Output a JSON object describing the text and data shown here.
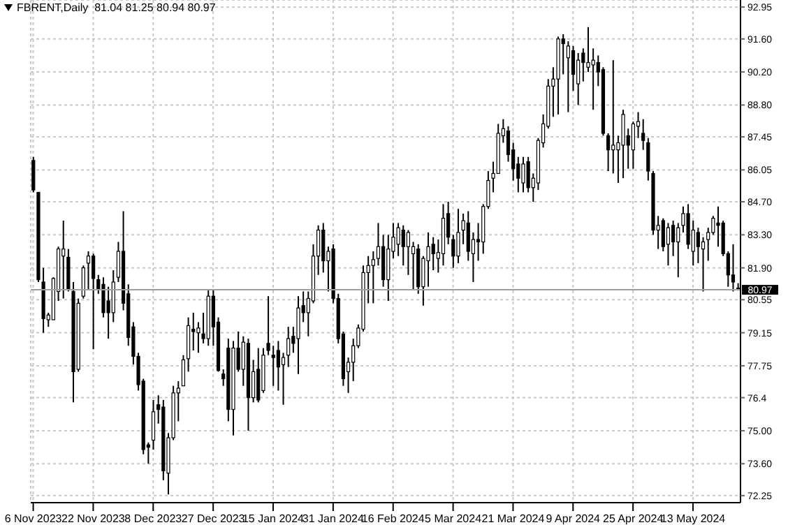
{
  "chart_data": {
    "type": "candlestick",
    "title": "FBRENT,Daily  81.04 81.25 80.94 80.97",
    "categories": [
      "6 Nov 2023",
      null,
      null,
      null,
      null,
      null,
      null,
      null,
      null,
      null,
      null,
      null,
      "22 Nov 2023",
      null,
      null,
      null,
      null,
      null,
      null,
      null,
      null,
      null,
      null,
      null,
      "8 Dec 2023",
      null,
      null,
      null,
      null,
      null,
      null,
      null,
      null,
      null,
      null,
      null,
      "27 Dec 2023",
      null,
      null,
      null,
      null,
      null,
      null,
      null,
      null,
      null,
      null,
      null,
      "15 Jan 2024",
      null,
      null,
      null,
      null,
      null,
      null,
      null,
      null,
      null,
      null,
      null,
      "31 Jan 2024",
      null,
      null,
      null,
      null,
      null,
      null,
      null,
      null,
      null,
      null,
      null,
      "16 Feb 2024",
      null,
      null,
      null,
      null,
      null,
      null,
      null,
      null,
      null,
      null,
      null,
      "5 Mar 2024",
      null,
      null,
      null,
      null,
      null,
      null,
      null,
      null,
      null,
      null,
      null,
      "21 Mar 2024",
      null,
      null,
      null,
      null,
      null,
      null,
      null,
      null,
      null,
      null,
      null,
      "9 Apr 2024",
      null,
      null,
      null,
      null,
      null,
      null,
      null,
      null,
      null,
      null,
      null,
      "25 Apr 2024",
      null,
      null,
      null,
      null,
      null,
      null,
      null,
      null,
      null,
      null,
      null,
      "13 May 2024",
      null,
      null,
      null,
      null,
      null,
      null,
      null,
      null,
      null
    ],
    "ohlc": [
      [
        86.45,
        86.6,
        85.1,
        85.2
      ],
      [
        85.1,
        85.1,
        81.3,
        81.4
      ],
      [
        81.3,
        81.9,
        79.15,
        79.75
      ],
      [
        79.7,
        80.0,
        79.4,
        79.9
      ],
      [
        79.7,
        81.5,
        79.7,
        81.45
      ],
      [
        80.9,
        82.8,
        80.5,
        82.7
      ],
      [
        82.4,
        83.9,
        80.6,
        82.7
      ],
      [
        82.35,
        82.7,
        80.9,
        81.0
      ],
      [
        80.9,
        81.3,
        76.2,
        77.5
      ],
      [
        77.6,
        80.6,
        77.5,
        80.4
      ],
      [
        80.7,
        82.0,
        80.6,
        81.9
      ],
      [
        82.1,
        82.6,
        81.0,
        82.4
      ],
      [
        82.4,
        82.5,
        78.45,
        81.45
      ],
      [
        81.4,
        81.6,
        80.8,
        81.0
      ],
      [
        81.2,
        81.5,
        79.8,
        80.0
      ],
      [
        80.5,
        81.1,
        78.9,
        80.0
      ],
      [
        80.0,
        81.8,
        79.6,
        81.3
      ],
      [
        81.5,
        83.0,
        81.3,
        82.6
      ],
      [
        82.6,
        84.3,
        80.1,
        80.4
      ],
      [
        80.8,
        81.2,
        78.6,
        78.95
      ],
      [
        79.4,
        79.6,
        77.8,
        78.15
      ],
      [
        78.15,
        78.3,
        76.7,
        76.95
      ],
      [
        77.1,
        77.2,
        74.0,
        74.2
      ],
      [
        74.4,
        74.5,
        73.6,
        74.3
      ],
      [
        74.6,
        76.3,
        74.2,
        75.8
      ],
      [
        76.1,
        76.5,
        75.3,
        75.9
      ],
      [
        76.0,
        76.3,
        72.9,
        73.3
      ],
      [
        73.2,
        74.9,
        72.3,
        74.7
      ],
      [
        74.7,
        76.9,
        74.6,
        76.6
      ],
      [
        76.6,
        77.1,
        75.4,
        76.8
      ],
      [
        76.9,
        78.2,
        76.9,
        78.0
      ],
      [
        78.05,
        79.8,
        77.5,
        79.45
      ],
      [
        79.3,
        80.0,
        78.4,
        79.2
      ],
      [
        79.15,
        79.6,
        78.3,
        79.35
      ],
      [
        79.1,
        80.0,
        78.7,
        78.9
      ],
      [
        78.9,
        81.0,
        78.6,
        80.7
      ],
      [
        80.7,
        81.0,
        78.6,
        79.4
      ],
      [
        79.6,
        79.8,
        77.5,
        77.55
      ],
      [
        77.4,
        77.6,
        76.9,
        77.2
      ],
      [
        78.5,
        78.9,
        75.4,
        75.9
      ],
      [
        75.9,
        78.8,
        74.8,
        78.5
      ],
      [
        78.5,
        79.2,
        77.5,
        77.6
      ],
      [
        77.6,
        79.0,
        76.9,
        78.75
      ],
      [
        78.7,
        78.9,
        75.0,
        76.4
      ],
      [
        76.4,
        78.0,
        76.2,
        77.5
      ],
      [
        77.6,
        78.5,
        76.2,
        76.3
      ],
      [
        76.7,
        78.5,
        76.6,
        78.2
      ],
      [
        78.7,
        80.7,
        78.2,
        78.4
      ],
      [
        78.2,
        78.6,
        76.9,
        78.1
      ],
      [
        78.4,
        78.8,
        76.7,
        77.7
      ],
      [
        77.8,
        78.3,
        76.1,
        78.1
      ],
      [
        78.2,
        79.4,
        77.7,
        78.9
      ],
      [
        79.0,
        79.4,
        78.3,
        78.7
      ],
      [
        78.9,
        80.7,
        77.4,
        80.2
      ],
      [
        80.3,
        80.9,
        79.6,
        80.0
      ],
      [
        80.0,
        80.9,
        79.0,
        80.6
      ],
      [
        80.5,
        82.9,
        80.4,
        82.4
      ],
      [
        82.4,
        83.7,
        81.6,
        83.5
      ],
      [
        83.5,
        83.8,
        81.7,
        82.2
      ],
      [
        82.2,
        82.8,
        80.9,
        82.6
      ],
      [
        82.7,
        82.9,
        80.4,
        80.6
      ],
      [
        80.6,
        80.8,
        78.7,
        78.9
      ],
      [
        79.1,
        79.2,
        76.9,
        77.2
      ],
      [
        77.5,
        78.1,
        76.6,
        77.9
      ],
      [
        77.9,
        78.9,
        77.1,
        78.6
      ],
      [
        78.6,
        79.5,
        78.5,
        79.35
      ],
      [
        79.3,
        82.0,
        79.2,
        81.7
      ],
      [
        81.7,
        82.4,
        80.4,
        82.0
      ],
      [
        82.0,
        82.6,
        80.4,
        82.25
      ],
      [
        82.3,
        83.8,
        82.0,
        82.8
      ],
      [
        82.8,
        83.3,
        81.1,
        81.4
      ],
      [
        81.4,
        83.3,
        80.5,
        82.7
      ],
      [
        82.6,
        83.8,
        82.3,
        83.2
      ],
      [
        82.9,
        83.8,
        82.4,
        83.6
      ],
      [
        83.5,
        83.7,
        82.0,
        82.8
      ],
      [
        82.8,
        83.5,
        81.6,
        83.4
      ],
      [
        82.5,
        83.0,
        81.0,
        82.8
      ],
      [
        82.7,
        82.9,
        80.8,
        81.1
      ],
      [
        81.1,
        82.4,
        80.3,
        82.3
      ],
      [
        82.2,
        83.4,
        81.1,
        82.8
      ],
      [
        82.9,
        83.2,
        81.8,
        82.5
      ],
      [
        82.3,
        83.1,
        81.7,
        82.55
      ],
      [
        82.5,
        84.6,
        82.0,
        84.0
      ],
      [
        84.2,
        84.7,
        82.9,
        83.2
      ],
      [
        83.1,
        83.3,
        81.9,
        82.4
      ],
      [
        82.4,
        84.4,
        82.1,
        83.4
      ],
      [
        83.5,
        84.2,
        82.9,
        83.9
      ],
      [
        83.8,
        84.3,
        82.2,
        82.6
      ],
      [
        82.5,
        83.4,
        81.3,
        83.1
      ],
      [
        83.1,
        83.8,
        82.2,
        83.0
      ],
      [
        83.0,
        84.6,
        82.5,
        84.5
      ],
      [
        84.5,
        86.0,
        84.4,
        85.6
      ],
      [
        85.7,
        86.4,
        85.1,
        85.9
      ],
      [
        85.9,
        88.0,
        85.9,
        87.6
      ],
      [
        87.5,
        88.2,
        87.2,
        87.8
      ],
      [
        87.7,
        87.9,
        86.4,
        86.7
      ],
      [
        86.9,
        87.2,
        85.6,
        86.1
      ],
      [
        86.3,
        86.6,
        85.1,
        85.7
      ],
      [
        85.5,
        86.6,
        85.1,
        86.3
      ],
      [
        86.4,
        86.6,
        85.1,
        85.3
      ],
      [
        85.3,
        85.9,
        84.7,
        85.7
      ],
      [
        85.5,
        87.4,
        85.2,
        87.3
      ],
      [
        87.2,
        88.4,
        87.0,
        88.0
      ],
      [
        87.9,
        89.9,
        87.8,
        89.6
      ],
      [
        89.6,
        90.4,
        88.3,
        89.9
      ],
      [
        89.9,
        91.7,
        88.4,
        91.6
      ],
      [
        91.6,
        91.8,
        90.1,
        91.4
      ],
      [
        90.8,
        91.5,
        88.5,
        91.3
      ],
      [
        91.1,
        91.3,
        89.4,
        90.1
      ],
      [
        89.7,
        91.0,
        88.8,
        90.7
      ],
      [
        91.0,
        91.2,
        89.8,
        90.6
      ],
      [
        90.4,
        92.1,
        90.2,
        90.6
      ],
      [
        90.5,
        91.2,
        88.6,
        90.7
      ],
      [
        90.6,
        90.9,
        89.6,
        90.2
      ],
      [
        90.3,
        90.4,
        87.5,
        87.6
      ],
      [
        87.5,
        87.6,
        86.0,
        86.9
      ],
      [
        86.9,
        90.7,
        85.9,
        87.1
      ],
      [
        86.9,
        87.5,
        85.5,
        87.2
      ],
      [
        87.1,
        88.6,
        85.7,
        88.4
      ],
      [
        87.5,
        87.8,
        86.1,
        87.1
      ],
      [
        86.9,
        88.1,
        86.1,
        88.0
      ],
      [
        87.9,
        88.5,
        87.4,
        88.1
      ],
      [
        87.6,
        88.2,
        86.9,
        87.3
      ],
      [
        87.2,
        87.4,
        85.6,
        86.0
      ],
      [
        85.9,
        86.0,
        83.3,
        83.5
      ],
      [
        83.5,
        84.1,
        82.7,
        83.7
      ],
      [
        83.9,
        84.0,
        82.6,
        82.8
      ],
      [
        82.9,
        83.8,
        82.0,
        83.6
      ],
      [
        83.7,
        83.9,
        82.4,
        83.0
      ],
      [
        83.0,
        83.8,
        81.5,
        83.6
      ],
      [
        83.7,
        84.5,
        83.4,
        84.2
      ],
      [
        84.2,
        84.6,
        82.7,
        82.9
      ],
      [
        82.6,
        83.9,
        82.0,
        83.5
      ],
      [
        83.4,
        83.6,
        82.1,
        82.8
      ],
      [
        82.7,
        83.2,
        80.9,
        83.0
      ],
      [
        83.1,
        83.6,
        82.2,
        83.4
      ],
      [
        83.4,
        84.1,
        83.3,
        84.0
      ],
      [
        83.8,
        84.5,
        82.8,
        83.7
      ],
      [
        83.8,
        83.9,
        82.4,
        82.5
      ],
      [
        82.5,
        82.6,
        81.1,
        81.6
      ],
      [
        81.6,
        82.9,
        80.9,
        81.3
      ],
      [
        81.04,
        81.25,
        80.94,
        80.97
      ]
    ],
    "ylim": [
      71.95,
      93.25
    ],
    "yticks": [
      72.25,
      {
        "value": 73.6,
        "label": "73.60"
      },
      {
        "value": 75,
        "label": "75.00"
      },
      76.4,
      77.75,
      79.15,
      80.55,
      {
        "value": 81.9,
        "label": "81.90"
      },
      {
        "value": 83.3,
        "label": "83.30"
      },
      {
        "value": 84.7,
        "label": "84.70"
      },
      86.05,
      87.45,
      {
        "value": 88.8,
        "label": "88.80"
      },
      {
        "value": 90.2,
        "label": "90.20"
      },
      {
        "value": 91.6,
        "label": "91.60"
      },
      92.95
    ],
    "grid": true,
    "ref_lines": [
      {
        "axis": "y",
        "value": 80.97,
        "label": "80.97"
      }
    ]
  }
}
